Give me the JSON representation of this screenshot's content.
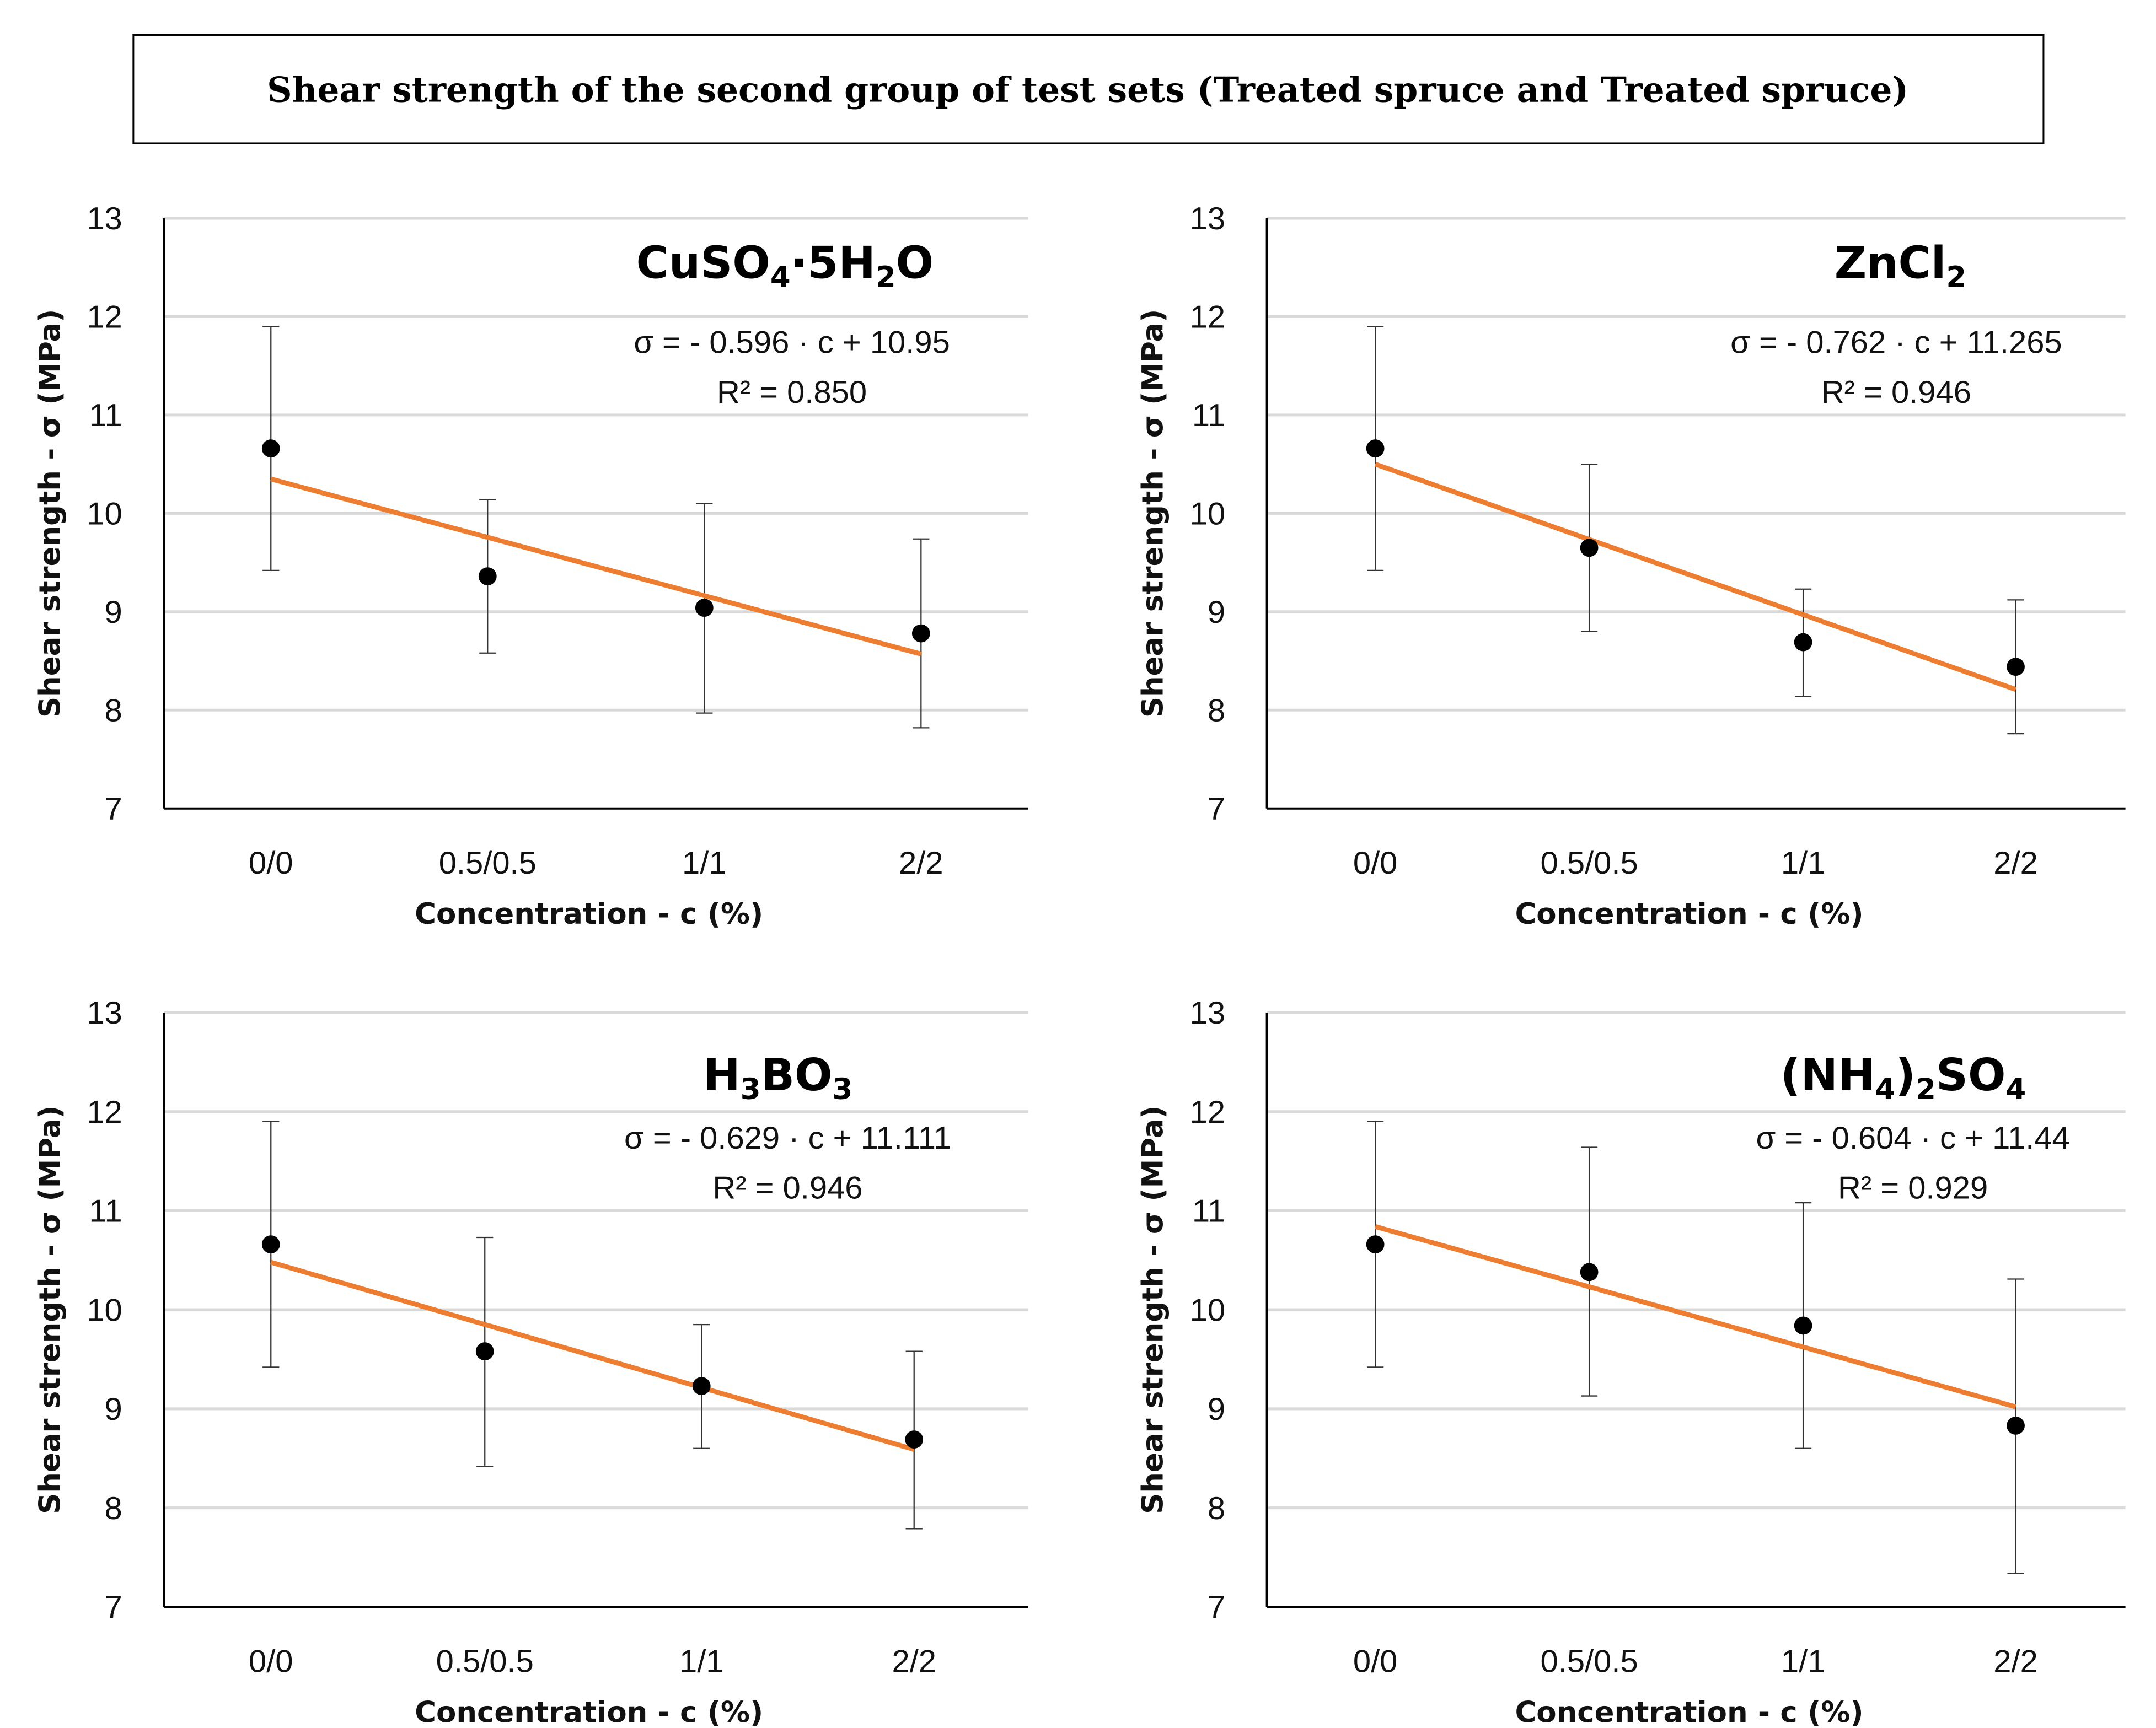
{
  "title": "Shear strength of the second group of test sets (Treated spruce and Treated spruce)",
  "colors": {
    "trend": "#ED7D31",
    "points": "#000000",
    "grid": "#D9D9D9",
    "error": "#333333"
  },
  "chart_data": [
    {
      "type": "scatter",
      "title": "CuSO4·5H2O",
      "equation": "σ = - 0.596 · c + 10.95",
      "r2": "R² = 0.850",
      "xlabel": "Concentration - c (%)",
      "ylabel": "Shear strength - σ (MPa)",
      "categories": [
        "0/0",
        "0.5/0.5",
        "1/1",
        "2/2"
      ],
      "ylim": [
        7,
        13
      ],
      "yticks": [
        "7",
        "8",
        "9",
        "10",
        "11",
        "12",
        "13"
      ],
      "grid": true,
      "values": [
        10.66,
        9.36,
        9.04,
        8.78
      ],
      "error_high": [
        11.9,
        10.14,
        10.1,
        9.74
      ],
      "error_low": [
        9.42,
        8.58,
        7.97,
        7.82
      ],
      "trendline": [
        10.35,
        8.57
      ]
    },
    {
      "type": "scatter",
      "title": "ZnCl2",
      "equation": "σ = - 0.762 · c + 11.265",
      "r2": "R² = 0.946",
      "xlabel": "Concentration - c (%)",
      "ylabel": "Shear strength - σ (MPa)",
      "categories": [
        "0/0",
        "0.5/0.5",
        "1/1",
        "2/2"
      ],
      "ylim": [
        7,
        13
      ],
      "yticks": [
        "7",
        "8",
        "9",
        "10",
        "11",
        "12",
        "13"
      ],
      "grid": true,
      "values": [
        10.66,
        9.65,
        8.69,
        8.44
      ],
      "error_high": [
        11.9,
        10.5,
        9.23,
        9.12
      ],
      "error_low": [
        9.42,
        8.8,
        8.14,
        7.76
      ],
      "trendline": [
        10.5,
        8.21
      ]
    },
    {
      "type": "scatter",
      "title": "H3BO3",
      "equation": "σ = - 0.629 · c  + 11.111",
      "r2": "R² = 0.946",
      "xlabel": "Concentration - c (%)",
      "ylabel": "Shear strength - σ (MPa)",
      "categories": [
        "0/0",
        "0.5/0.5",
        "1/1",
        "2/2"
      ],
      "ylim": [
        7,
        13
      ],
      "yticks": [
        "7",
        "8",
        "9",
        "10",
        "11",
        "12",
        "13"
      ],
      "grid": true,
      "values": [
        10.66,
        9.58,
        9.23,
        8.69
      ],
      "error_high": [
        11.9,
        10.73,
        9.85,
        9.58
      ],
      "error_low": [
        9.42,
        8.42,
        8.6,
        7.79
      ],
      "trendline": [
        10.48,
        8.59
      ]
    },
    {
      "type": "scatter",
      "title": "(NH4)2SO4",
      "equation": "σ = - 0.604 · c  + 11.44",
      "r2": "R² = 0.929",
      "xlabel": "Concentration - c (%)",
      "ylabel": "Shear strength - σ (MPa)",
      "categories": [
        "0/0",
        "0.5/0.5",
        "1/1",
        "2/2"
      ],
      "ylim": [
        7,
        13
      ],
      "yticks": [
        "7",
        "8",
        "9",
        "10",
        "11",
        "12",
        "13"
      ],
      "grid": true,
      "values": [
        10.66,
        10.38,
        9.84,
        8.83
      ],
      "error_high": [
        11.9,
        11.64,
        11.08,
        10.31
      ],
      "error_low": [
        9.42,
        9.13,
        8.6,
        7.34
      ],
      "trendline": [
        10.84,
        9.02
      ]
    }
  ]
}
